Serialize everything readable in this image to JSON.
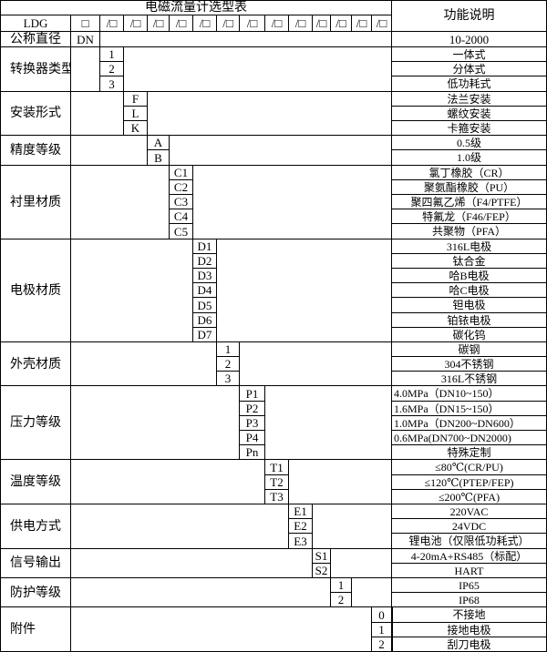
{
  "header": {
    "title": "电磁流量计选型表",
    "function_header": "功能说明",
    "model_prefix": "LDG",
    "first_slot": "□",
    "slot": "/□",
    "slot_count": 13,
    "nominal_label": "公称直径",
    "nominal_code": "DN",
    "nominal_desc": "10-2000"
  },
  "groups": [
    {
      "label": "转换器类型",
      "options": [
        {
          "code": "1",
          "desc": "一体式"
        },
        {
          "code": "2",
          "desc": "分体式"
        },
        {
          "code": "3",
          "desc": "低功耗式"
        }
      ]
    },
    {
      "label": "安装形式",
      "options": [
        {
          "code": "F",
          "desc": "法兰安装"
        },
        {
          "code": "L",
          "desc": "螺纹安装"
        },
        {
          "code": "K",
          "desc": "卡箍安装"
        }
      ]
    },
    {
      "label": "精度等级",
      "options": [
        {
          "code": "A",
          "desc": "0.5级"
        },
        {
          "code": "B",
          "desc": "1.0级"
        }
      ]
    },
    {
      "label": "衬里材质",
      "options": [
        {
          "code": "C1",
          "desc": "氯丁橡胶（CR）"
        },
        {
          "code": "C2",
          "desc": "聚氨酯橡胶（PU）"
        },
        {
          "code": "C3",
          "desc": "聚四氟乙烯（F4/PTFE）"
        },
        {
          "code": "C4",
          "desc": "特氟龙（F46/FEP）"
        },
        {
          "code": "C5",
          "desc": "共聚物（PFA）"
        }
      ]
    },
    {
      "label": "电极材质",
      "options": [
        {
          "code": "D1",
          "desc": "316L电极"
        },
        {
          "code": "D2",
          "desc": "钛合金"
        },
        {
          "code": "D3",
          "desc": "哈B电极"
        },
        {
          "code": "D4",
          "desc": "哈C电极"
        },
        {
          "code": "D5",
          "desc": "钽电极"
        },
        {
          "code": "D6",
          "desc": "铂铱电极"
        },
        {
          "code": "D7",
          "desc": "碳化钨"
        }
      ]
    },
    {
      "label": "外壳材质",
      "options": [
        {
          "code": "1",
          "desc": "碳钢"
        },
        {
          "code": "2",
          "desc": "304不锈钢"
        },
        {
          "code": "3",
          "desc": "316L不锈钢"
        }
      ]
    },
    {
      "label": "压力等级",
      "options": [
        {
          "code": "P1",
          "desc": "4.0MPa（DN10~150）",
          "align": "left"
        },
        {
          "code": "P2",
          "desc": "1.6MPa（DN15~150）",
          "align": "left"
        },
        {
          "code": "P3",
          "desc": "1.0MPa（DN200~DN600）",
          "align": "left"
        },
        {
          "code": "P4",
          "desc": "0.6MPa(DN700~DN2000)",
          "align": "left"
        },
        {
          "code": "Pn",
          "desc": "特殊定制"
        }
      ]
    },
    {
      "label": "温度等级",
      "options": [
        {
          "code": "T1",
          "desc": "≤80℃(CR/PU)"
        },
        {
          "code": "T2",
          "desc": "≤120℃(PTEP/FEP)"
        },
        {
          "code": "T3",
          "desc": "≤200℃(PFA)"
        }
      ]
    },
    {
      "label": "供电方式",
      "options": [
        {
          "code": "E1",
          "desc": "220VAC"
        },
        {
          "code": "E2",
          "desc": "24VDC"
        },
        {
          "code": "E3",
          "desc": "锂电池（仅限低功耗式）"
        }
      ]
    },
    {
      "label": "信号输出",
      "options": [
        {
          "code": "S1",
          "desc": "4-20mA+RS485（标配）"
        },
        {
          "code": "S2",
          "desc": "HART"
        }
      ]
    },
    {
      "label": "防护等级",
      "options": [
        {
          "code": "1",
          "desc": "IP65"
        },
        {
          "code": "2",
          "desc": "IP68"
        }
      ]
    },
    {
      "label": "附件",
      "options": [
        {
          "code": "0",
          "desc": "不接地"
        },
        {
          "code": "1",
          "desc": "接地电极"
        },
        {
          "code": "2",
          "desc": "刮刀电极"
        }
      ]
    }
  ]
}
